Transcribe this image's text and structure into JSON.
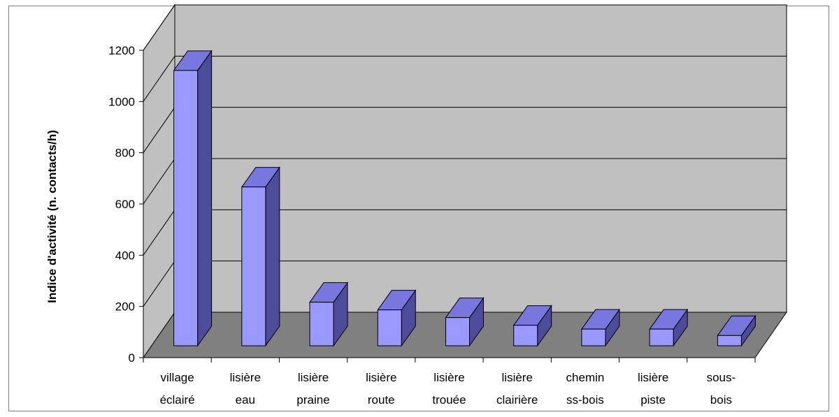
{
  "chart_data": {
    "type": "bar",
    "style": "3d-column",
    "title": "",
    "xlabel": "",
    "ylabel": "Indice d'activité (n. contacts/h)",
    "ylim": [
      0,
      1200
    ],
    "yticks": [
      0,
      200,
      400,
      600,
      800,
      1000,
      1200
    ],
    "grid": true,
    "legend": "none",
    "categories": [
      [
        "village",
        "éclairé"
      ],
      [
        "lisière",
        "eau"
      ],
      [
        "lisière",
        "praine"
      ],
      [
        "lisière",
        "route"
      ],
      [
        "lisière",
        "trouée"
      ],
      [
        "lisière",
        "clairière"
      ],
      [
        "chemin",
        "ss-bois"
      ],
      [
        "lisière",
        "piste"
      ],
      [
        "sous-",
        "bois"
      ]
    ],
    "values": [
      1075,
      620,
      170,
      140,
      110,
      80,
      65,
      65,
      40
    ]
  },
  "colors": {
    "bar_front": "#9999ff",
    "bar_top": "#7777dd",
    "bar_side": "#4c4c9a",
    "back_wall": "#c0c0c0",
    "side_wall": "#c0c0c0",
    "floor": "#808080",
    "gridline": "#000000"
  }
}
